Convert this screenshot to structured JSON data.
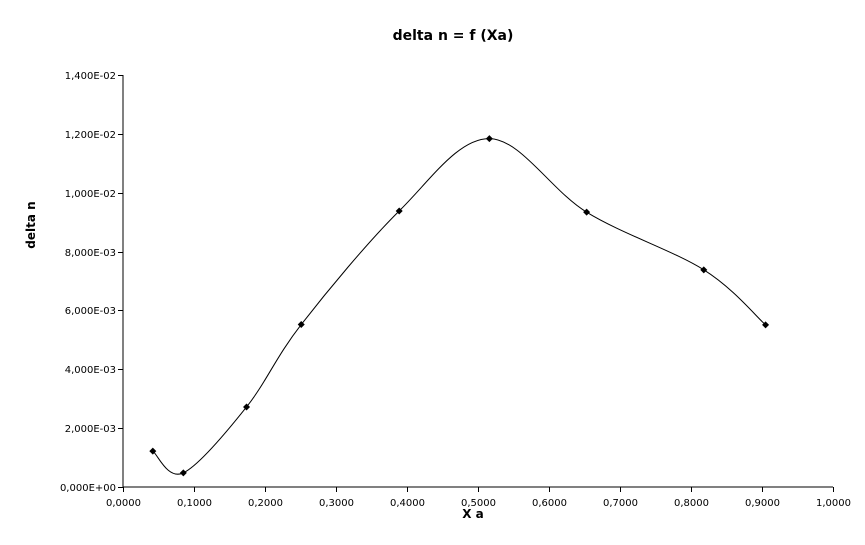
{
  "chart_data": {
    "type": "scatter",
    "title": "delta n = f (Xa)",
    "xlabel": "X a",
    "ylabel": "delta n",
    "xlim": [
      0,
      1
    ],
    "ylim": [
      0,
      0.014
    ],
    "x_ticks": [
      0,
      0.1,
      0.2,
      0.3,
      0.4,
      0.5,
      0.6,
      0.7,
      0.8,
      0.9,
      1.0
    ],
    "x_tick_labels": [
      "0,0000",
      "0,1000",
      "0,2000",
      "0,3000",
      "0,4000",
      "0,5000",
      "0,6000",
      "0,7000",
      "0,8000",
      "0,9000",
      "1,0000"
    ],
    "y_ticks": [
      0,
      0.002,
      0.004,
      0.006,
      0.008,
      0.01,
      0.012,
      0.014
    ],
    "y_tick_labels": [
      "0,000E+00",
      "2,000E-03",
      "4,000E-03",
      "6,000E-03",
      "8,000E-03",
      "1,000E-02",
      "1,200E-02",
      "1,400E-02"
    ],
    "grid": false,
    "legend": "none",
    "smoothed_line": true,
    "marker": "diamond",
    "series_color": "#000000",
    "series": [
      {
        "x": [
          0.042,
          0.085,
          0.174,
          0.251,
          0.389,
          0.516,
          0.653,
          0.818,
          0.905
        ],
        "y": [
          0.00122,
          0.00048,
          0.00272,
          0.00552,
          0.00938,
          0.01184,
          0.00934,
          0.00738,
          0.00551
        ]
      }
    ]
  }
}
